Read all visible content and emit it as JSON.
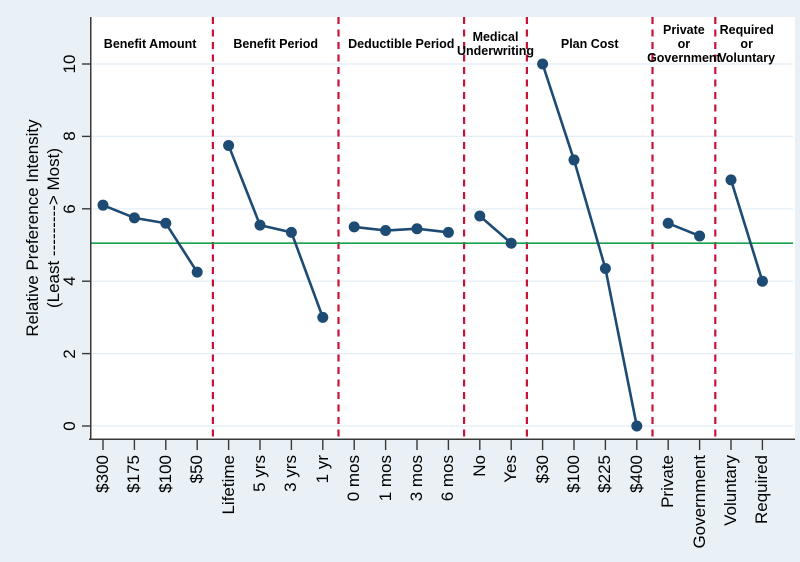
{
  "chart_data": {
    "type": "line",
    "title": "",
    "ylabel_line1": "Relative Preference Intensity",
    "ylabel_line2": "(Least ---------> Most)",
    "y_ticks": [
      0,
      2,
      4,
      6,
      8,
      10
    ],
    "ylim": [
      0,
      11.2
    ],
    "grid": true,
    "reference_line_value": 5.05,
    "groups": [
      {
        "header": [
          "Benefit Amount"
        ],
        "categories": [
          "$300",
          "$175",
          "$100",
          "$50"
        ],
        "values": [
          6.1,
          5.75,
          5.6,
          4.25
        ]
      },
      {
        "header": [
          "Benefit Period"
        ],
        "categories": [
          "Lifetime",
          "5 yrs",
          "3 yrs",
          "1 yr"
        ],
        "values": [
          7.75,
          5.55,
          5.35,
          3.0
        ]
      },
      {
        "header": [
          "Deductible Period"
        ],
        "categories": [
          "0 mos",
          "1 mos",
          "3 mos",
          "6 mos"
        ],
        "values": [
          5.5,
          5.4,
          5.45,
          5.35
        ]
      },
      {
        "header": [
          "Medical",
          "Underwriting"
        ],
        "categories": [
          "No",
          "Yes"
        ],
        "values": [
          5.8,
          5.05
        ]
      },
      {
        "header": [
          "Plan Cost"
        ],
        "categories": [
          "$30",
          "$100",
          "$225",
          "$400"
        ],
        "values": [
          10.0,
          7.35,
          4.35,
          0.0
        ]
      },
      {
        "header": [
          "Private",
          "or",
          "Government"
        ],
        "categories": [
          "Private",
          "Government"
        ],
        "values": [
          5.6,
          5.25
        ]
      },
      {
        "header": [
          "Required",
          "or",
          "Voluntary"
        ],
        "categories": [
          "Voluntary",
          "Required"
        ],
        "values": [
          6.8,
          4.0
        ]
      }
    ],
    "colors": {
      "series": "#1d4b73",
      "divider": "#c81238",
      "reference": "#16a14c",
      "background": "#e9f1f6",
      "plot_background": "#ffffff",
      "gridline": "#e2edf5",
      "axis": "#383838",
      "text": "#000000"
    }
  }
}
